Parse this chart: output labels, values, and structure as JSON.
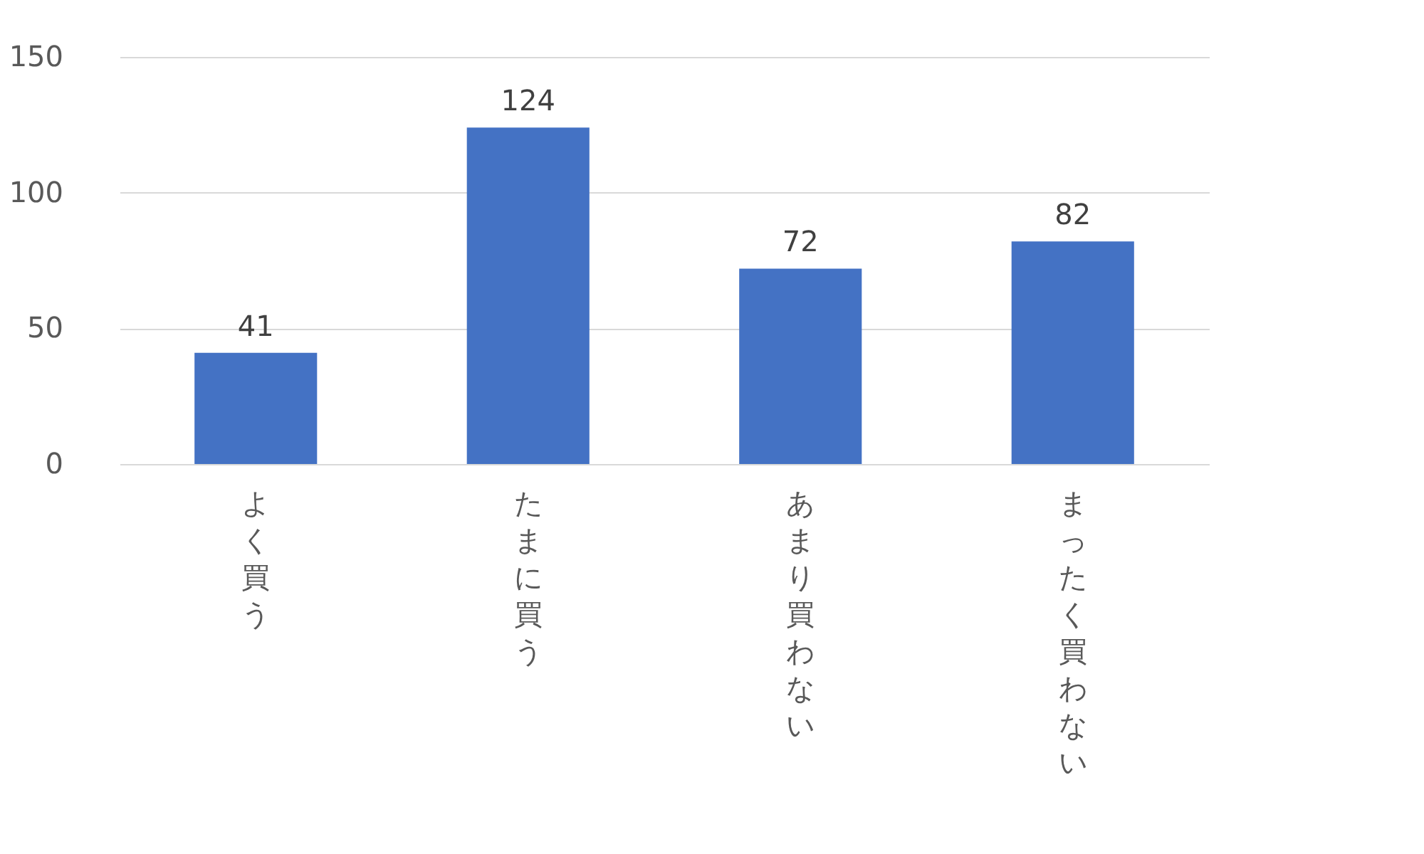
{
  "chart_data": {
    "type": "bar",
    "categories": [
      "よく買う",
      "たまに買う",
      "あまり買わない",
      "まったく買わない"
    ],
    "values": [
      41,
      124,
      72,
      82
    ],
    "color": "#4472c4",
    "ylim": [
      0,
      150
    ],
    "yticks": [
      0,
      50,
      100,
      150
    ],
    "grid": "y",
    "data_labels": true
  }
}
